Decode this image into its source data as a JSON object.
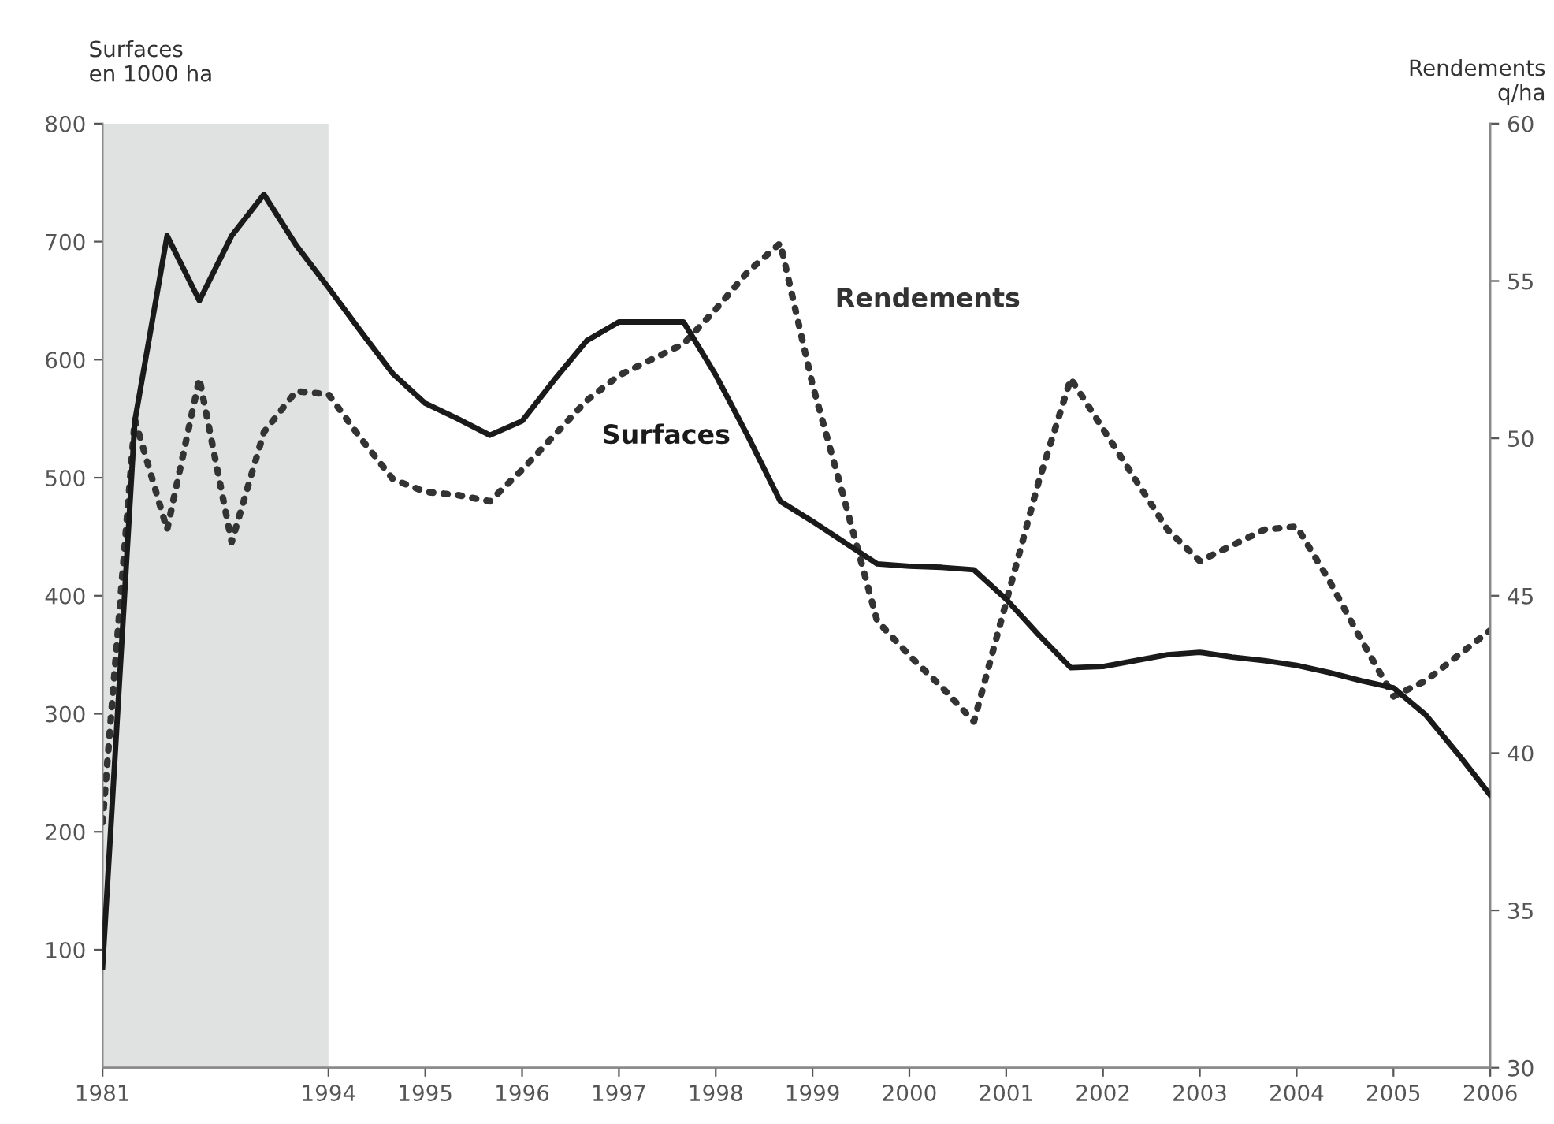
{
  "chart_data": {
    "type": "line",
    "ylabel": "Surfaces\nen 1000 ha",
    "y2label": "Rendements\nq/ha",
    "categories": [
      "1981",
      null,
      null,
      null,
      null,
      null,
      null,
      "1994",
      null,
      null,
      "1995",
      null,
      null,
      "1996",
      null,
      null,
      "1997",
      null,
      null,
      "1998",
      null,
      null,
      "1999",
      null,
      null,
      "2000",
      null,
      null,
      "2001",
      null,
      null,
      "2002",
      null,
      null,
      "2003",
      null,
      null,
      "2004",
      null,
      null,
      "2005",
      null,
      null,
      "2006"
    ],
    "ylim": [
      0,
      800
    ],
    "yticks": [
      100,
      200,
      300,
      400,
      500,
      600,
      700,
      800
    ],
    "y2lim": [
      30,
      60
    ],
    "y2ticks": [
      30,
      35,
      40,
      45,
      50,
      55,
      60
    ],
    "grid": false,
    "legend": false,
    "bands": [
      {
        "axis": "x",
        "from": "1981",
        "to": "1994",
        "color": "#e0e1e1"
      }
    ],
    "series": [
      {
        "name": "Surfaces",
        "color": "#1a1a1a",
        "line_style": "solid",
        "values": [
          85,
          548,
          705,
          650,
          705,
          740,
          697,
          661,
          624,
          588,
          563,
          550,
          536,
          548,
          583,
          616,
          632,
          632,
          632,
          587,
          535,
          480,
          463,
          445,
          427,
          425,
          424,
          422,
          397,
          367,
          339,
          340,
          345,
          350,
          352,
          348,
          345,
          341,
          335,
          328,
          322,
          299,
          266,
          231
        ]
      },
      {
        "name": "Rendements",
        "color": "#333333",
        "line_style": "dotted",
        "axis": "y2",
        "values": [
          37.8,
          50.6,
          47.1,
          51.9,
          46.7,
          50.2,
          51.5,
          51.4,
          50.0,
          48.7,
          48.3,
          48.2,
          48.0,
          49.0,
          50.1,
          51.2,
          52.0,
          52.5,
          53.0,
          54.1,
          55.3,
          56.2,
          51.7,
          48.0,
          44.2,
          43.1,
          42.1,
          41.0,
          44.8,
          48.6,
          51.9,
          50.3,
          48.7,
          47.1,
          46.1,
          46.6,
          47.1,
          47.2,
          45.5,
          43.6,
          41.8,
          42.3,
          43.1,
          43.9
        ]
      }
    ]
  }
}
